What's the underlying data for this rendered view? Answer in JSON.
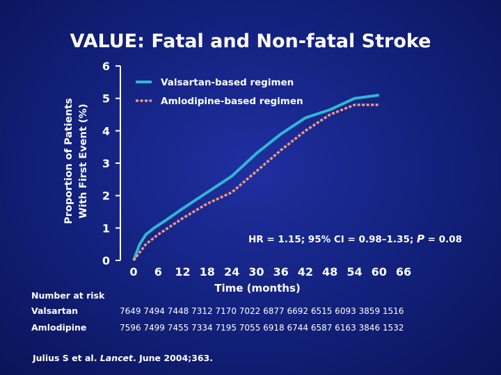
{
  "title": "VALUE: Fatal and Non-fatal Stroke",
  "chart_data": {
    "type": "line",
    "ylabel_line1": "Proportion of Patients",
    "ylabel_line2": "With First Event (%)",
    "xlabel": "Time (months)",
    "xlim": [
      0,
      66
    ],
    "ylim": [
      0,
      6
    ],
    "xticks": [
      "0",
      "6",
      "12",
      "18",
      "24",
      "30",
      "36",
      "42",
      "48",
      "54",
      "60",
      "66"
    ],
    "yticks": [
      "0",
      "1",
      "2",
      "3",
      "4",
      "5",
      "6"
    ],
    "grid": false,
    "legend": "top-left",
    "series": [
      {
        "name": "Valsartan-based regimen",
        "color": "#2fb8d4",
        "style": "solid",
        "points": [
          [
            0,
            0
          ],
          [
            1.5,
            0.5
          ],
          [
            3,
            0.8
          ],
          [
            5,
            1.0
          ],
          [
            8,
            1.25
          ],
          [
            12,
            1.6
          ],
          [
            18,
            2.1
          ],
          [
            24,
            2.6
          ],
          [
            30,
            3.3
          ],
          [
            36,
            3.9
          ],
          [
            42,
            4.4
          ],
          [
            48,
            4.65
          ],
          [
            54,
            5.0
          ],
          [
            60,
            5.1
          ]
        ]
      },
      {
        "name": "Amlodipine-based regimen",
        "color": "#f29a7e",
        "style": "dashed",
        "points": [
          [
            0,
            0
          ],
          [
            3,
            0.5
          ],
          [
            6,
            0.8
          ],
          [
            12,
            1.3
          ],
          [
            18,
            1.75
          ],
          [
            24,
            2.1
          ],
          [
            30,
            2.75
          ],
          [
            36,
            3.4
          ],
          [
            42,
            4.0
          ],
          [
            48,
            4.5
          ],
          [
            54,
            4.8
          ],
          [
            60,
            4.8
          ]
        ]
      }
    ],
    "annotation": {
      "pre": "HR = 1.15; 95% CI = 0.98–1.35; ",
      "p_letter": "P",
      "post": " = 0.08"
    }
  },
  "risk_table": {
    "title": "Number at risk",
    "rows": [
      {
        "label": "Valsartan",
        "values": "7649 7494 7448 7312 7170 7022 6877 6692 6515 6093 3859 1516"
      },
      {
        "label": "Amlodipine",
        "values": "7596 7499 7455 7334 7195 7055 6918 6744 6587 6163 3846 1532"
      }
    ]
  },
  "citation": {
    "authors": "Julius S et al. ",
    "journal": "Lancet",
    "rest": ". June 2004;363."
  }
}
